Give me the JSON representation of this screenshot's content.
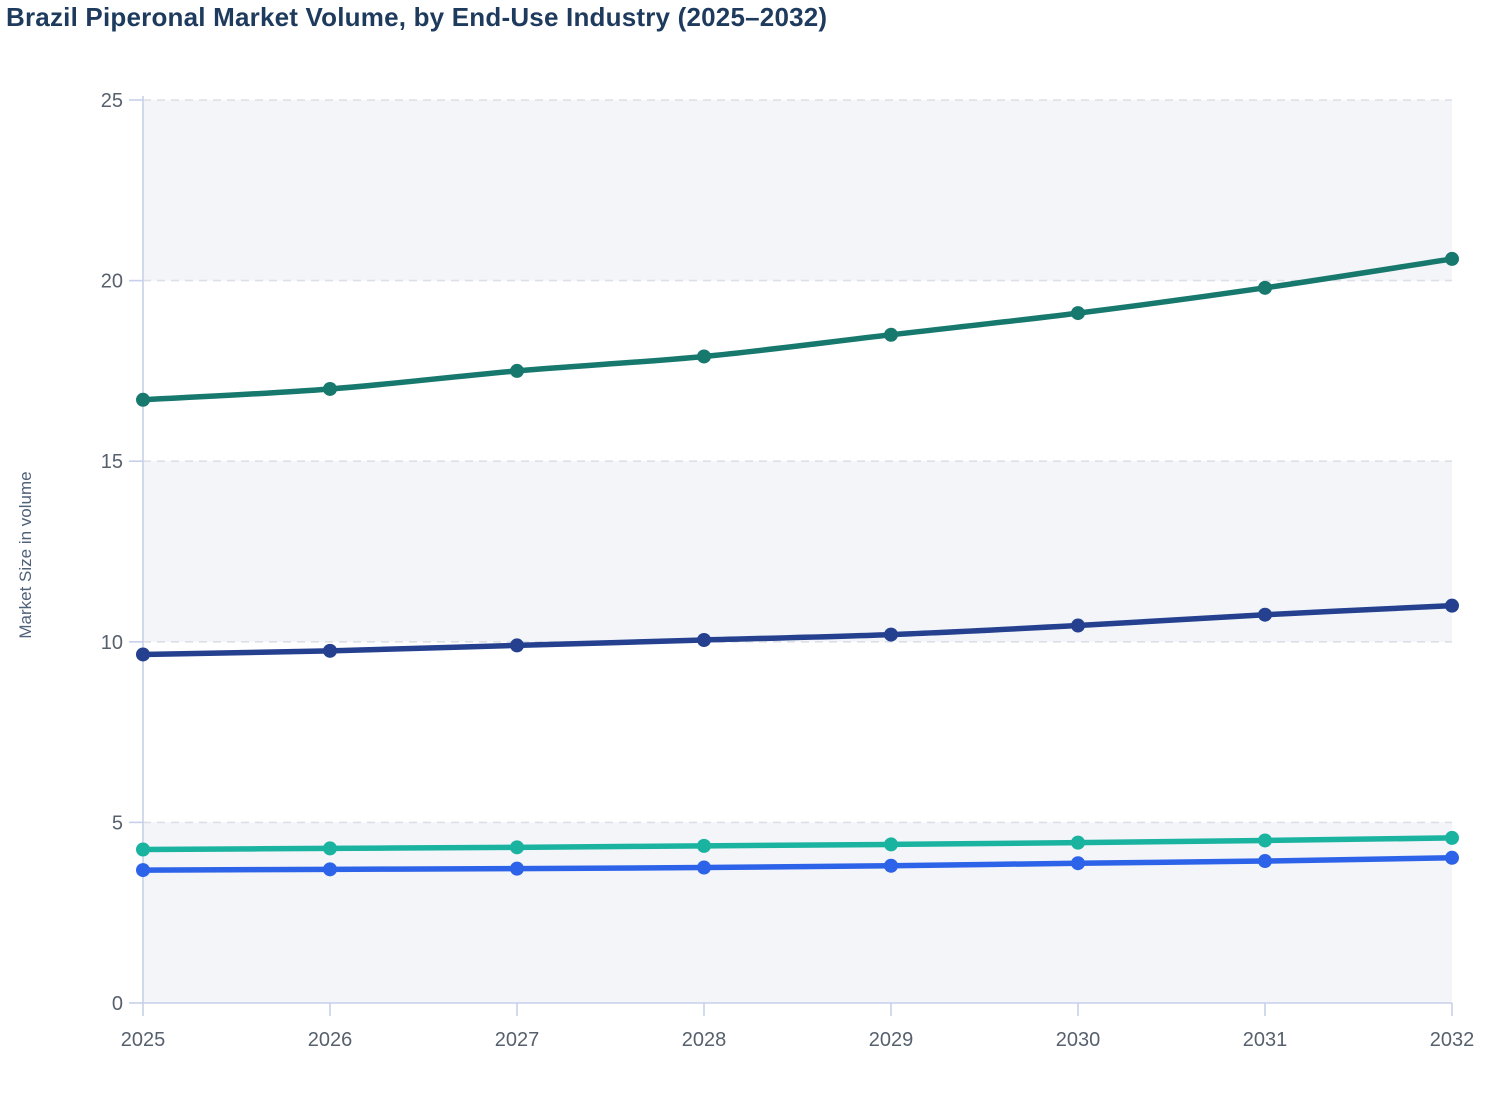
{
  "header": {
    "title": "Brazil Piperonal Market Volume, by End-Use Industry (2025–2032)",
    "title_color": "#1e3b5e"
  },
  "chart_data": {
    "type": "line",
    "title": "Brazil Piperonal Market Volume, by End-Use Industry (2025–2032)",
    "xlabel": "",
    "ylabel": "Market Size in volume",
    "categories": [
      "2025",
      "2026",
      "2027",
      "2028",
      "2029",
      "2030",
      "2031",
      "2032"
    ],
    "y_ticks": [
      0,
      5,
      10,
      15,
      20,
      25
    ],
    "ylim": [
      0,
      25
    ],
    "grid": "horizontal-dashed",
    "legend": "none",
    "plot_background": "alternating-horizontal-bands",
    "series": [
      {
        "name": "dark-teal-series",
        "color": "#17786e",
        "marker": "circle",
        "values": [
          16.7,
          17.0,
          17.5,
          17.9,
          18.5,
          19.1,
          19.8,
          20.6
        ]
      },
      {
        "name": "navy-series",
        "color": "#24408f",
        "marker": "circle",
        "values": [
          9.65,
          9.75,
          9.9,
          10.05,
          10.2,
          10.45,
          10.75,
          11.0
        ]
      },
      {
        "name": "light-teal-series",
        "color": "#1ab3a0",
        "marker": "circle",
        "values": [
          4.25,
          4.28,
          4.31,
          4.35,
          4.39,
          4.44,
          4.5,
          4.57
        ]
      },
      {
        "name": "blue-series",
        "color": "#2d63e8",
        "marker": "circle",
        "values": [
          3.68,
          3.7,
          3.72,
          3.75,
          3.8,
          3.87,
          3.93,
          4.02
        ]
      }
    ],
    "colors": {
      "band_fill": "#f3f5f9",
      "gridline": "#dcdfe5",
      "axis_line": "#c7d0ea",
      "tick_label": "#57616e",
      "axis_title": "#50617a"
    }
  }
}
